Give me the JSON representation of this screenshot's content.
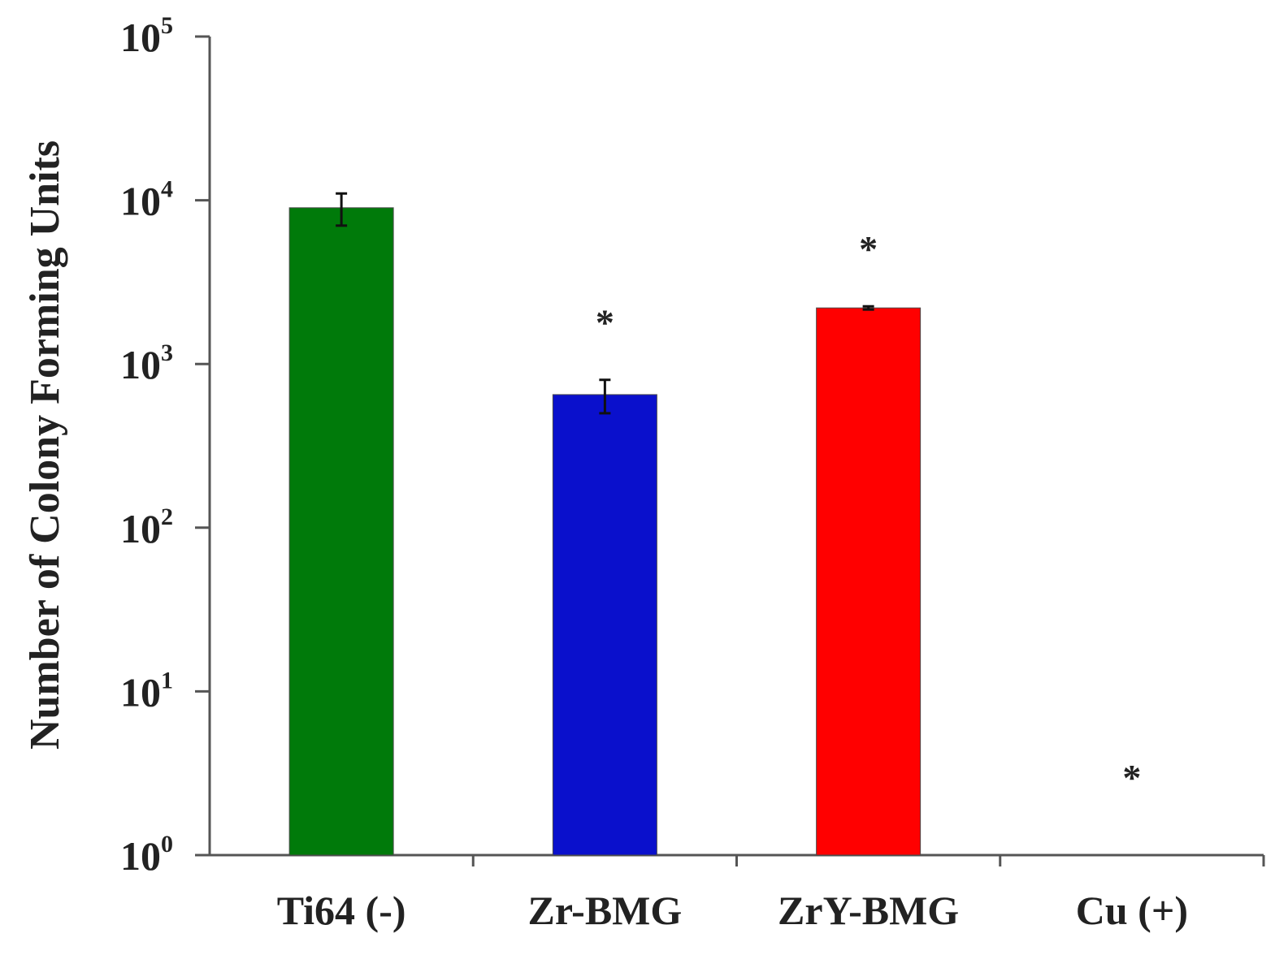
{
  "chart_data": {
    "type": "bar",
    "categories": [
      "Ti64 (-)",
      "Zr-BMG",
      "ZrY-BMG",
      "Cu (+)"
    ],
    "values": [
      9000,
      650,
      2200,
      1
    ],
    "errors": [
      2000,
      150,
      50,
      0
    ],
    "significance": [
      "",
      "*",
      "*",
      "*"
    ],
    "colors": [
      "#007a0a",
      "#0a10cc",
      "#ff0000",
      "#ffffff"
    ],
    "ylabel": "Number of Colony Forming Units",
    "xlabel": "",
    "title": "",
    "yscale": "log",
    "ylim": [
      1,
      100000
    ],
    "yticks": [
      {
        "base": "10",
        "exp": "0"
      },
      {
        "base": "10",
        "exp": "1"
      },
      {
        "base": "10",
        "exp": "2"
      },
      {
        "base": "10",
        "exp": "3"
      },
      {
        "base": "10",
        "exp": "4"
      },
      {
        "base": "10",
        "exp": "5"
      }
    ],
    "grid": false,
    "legend": "none"
  }
}
